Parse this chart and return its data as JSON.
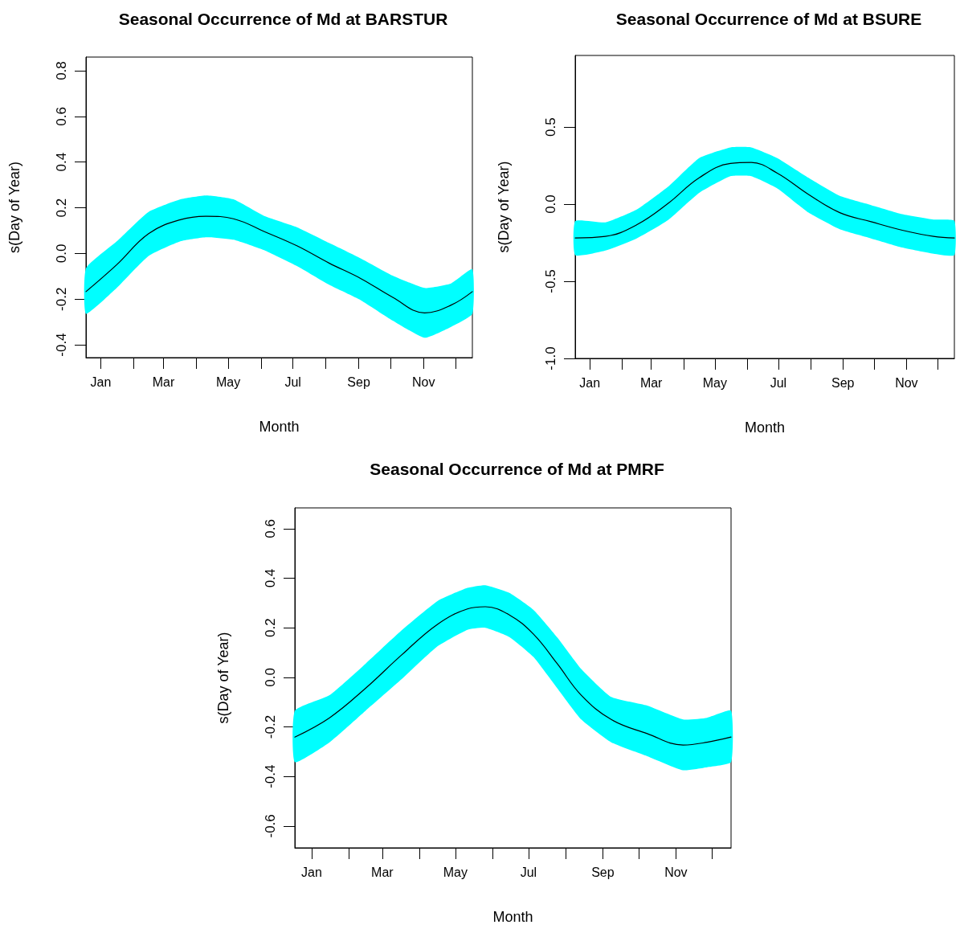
{
  "chart_data": [
    {
      "type": "line",
      "title": "Seasonal Occurrence of Md at BARSTUR",
      "xlabel": "Month",
      "ylabel": "s(Day of Year)",
      "x": [
        "--01-01",
        "--01-30",
        "--03-01",
        "--03-31",
        "--04-25",
        "--05-20",
        "--06-19",
        "--07-19",
        "--08-18",
        "--09-17",
        "--10-17",
        "--11-16",
        "--12-11",
        "--12-31"
      ],
      "series": [
        {
          "color": "#000000",
          "values": [
            -0.167,
            -0.049,
            0.087,
            0.148,
            0.163,
            0.152,
            0.094,
            0.033,
            -0.042,
            -0.11,
            -0.192,
            -0.26,
            -0.226,
            -0.167
          ],
          "upper": [
            -0.065,
            0.053,
            0.182,
            0.237,
            0.254,
            0.237,
            0.162,
            0.114,
            0.046,
            -0.022,
            -0.097,
            -0.151,
            -0.131,
            -0.069
          ],
          "lower": [
            -0.264,
            -0.151,
            -0.011,
            0.053,
            0.071,
            0.06,
            0.012,
            -0.056,
            -0.137,
            -0.205,
            -0.294,
            -0.369,
            -0.321,
            -0.264
          ]
        }
      ],
      "xticks": [
        {
          "value": "--01-15",
          "label": "Jan"
        },
        {
          "value": "--02-15",
          "label": null
        },
        {
          "value": "--03-15",
          "label": "Mar"
        },
        {
          "value": "--04-15",
          "label": null
        },
        {
          "value": "--05-15",
          "label": "May"
        },
        {
          "value": "--06-15",
          "label": null
        },
        {
          "value": "--07-15",
          "label": "Jul"
        },
        {
          "value": "--08-15",
          "label": null
        },
        {
          "value": "--09-15",
          "label": "Sep"
        },
        {
          "value": "--10-15",
          "label": null
        },
        {
          "value": "--11-15",
          "label": "Nov"
        },
        {
          "value": "--12-15",
          "label": null
        }
      ],
      "xlim": [
        "--01-01",
        "--12-31"
      ],
      "ylim": [
        -0.456,
        0.86
      ],
      "yticks": [
        {
          "value": -0.4,
          "label": "-0.4"
        },
        {
          "value": -0.2,
          "label": "-0.2"
        },
        {
          "value": 0,
          "label": "0.0"
        },
        {
          "value": 0.2,
          "label": "0.2"
        },
        {
          "value": 0.4,
          "label": "0.4"
        },
        {
          "value": 0.6,
          "label": "0.6"
        },
        {
          "value": 0.8,
          "label": "0.8"
        }
      ],
      "marker": "none",
      "line_style": "solid",
      "grid": false
    },
    {
      "type": "line",
      "title": "Seasonal Occurrence of Md at BSURE",
      "xlabel": "Month",
      "ylabel": "s(Day of Year)",
      "x": [
        "--01-01",
        "--01-30",
        "--03-01",
        "--03-31",
        "--04-30",
        "--05-30",
        "--06-19",
        "--07-14",
        "--08-13",
        "--09-12",
        "--10-12",
        "--11-11",
        "--12-11",
        "--12-31"
      ],
      "series": [
        {
          "color": "#000000",
          "values": [
            -0.219,
            -0.209,
            -0.134,
            0.004,
            0.171,
            0.264,
            0.27,
            0.201,
            0.063,
            -0.055,
            -0.114,
            -0.169,
            -0.209,
            -0.219
          ],
          "upper": [
            -0.11,
            -0.118,
            -0.035,
            0.112,
            0.299,
            0.368,
            0.368,
            0.299,
            0.171,
            0.053,
            -0.006,
            -0.065,
            -0.1,
            -0.108
          ],
          "lower": [
            -0.331,
            -0.301,
            -0.222,
            -0.104,
            0.073,
            0.181,
            0.181,
            0.102,
            -0.055,
            -0.163,
            -0.222,
            -0.281,
            -0.321,
            -0.331
          ]
        }
      ],
      "xticks": [
        {
          "value": "--01-15",
          "label": "Jan"
        },
        {
          "value": "--02-15",
          "label": null
        },
        {
          "value": "--03-15",
          "label": "Mar"
        },
        {
          "value": "--04-15",
          "label": null
        },
        {
          "value": "--05-15",
          "label": "May"
        },
        {
          "value": "--06-15",
          "label": null
        },
        {
          "value": "--07-15",
          "label": "Jul"
        },
        {
          "value": "--08-15",
          "label": null
        },
        {
          "value": "--09-15",
          "label": "Sep"
        },
        {
          "value": "--10-15",
          "label": null
        },
        {
          "value": "--11-15",
          "label": "Nov"
        },
        {
          "value": "--12-15",
          "label": null
        }
      ],
      "xlim": [
        "--01-01",
        "--12-31"
      ],
      "ylim": [
        -1.0,
        0.964
      ],
      "yticks": [
        {
          "value": -1,
          "label": "-1.0"
        },
        {
          "value": -0.5,
          "label": "-0.5"
        },
        {
          "value": 0,
          "label": "0.0"
        },
        {
          "value": 0.5,
          "label": "0.5"
        }
      ],
      "marker": "none",
      "line_style": "solid",
      "grid": false
    },
    {
      "type": "line",
      "title": "Seasonal Occurrence of Md at PMRF",
      "xlabel": "Month",
      "ylabel": "s(Day of Year)",
      "x": [
        "--01-01",
        "--01-30",
        "--03-01",
        "--03-31",
        "--04-30",
        "--05-25",
        "--06-09",
        "--06-29",
        "--07-19",
        "--08-08",
        "--08-28",
        "--09-22",
        "--10-22",
        "--11-21",
        "--12-11",
        "--12-31"
      ],
      "series": [
        {
          "color": "#000000",
          "values": [
            -0.241,
            -0.163,
            -0.044,
            0.09,
            0.214,
            0.276,
            0.285,
            0.252,
            0.175,
            0.055,
            -0.072,
            -0.17,
            -0.227,
            -0.273,
            -0.262,
            -0.241
          ],
          "upper": [
            -0.135,
            -0.072,
            0.055,
            0.189,
            0.308,
            0.361,
            0.372,
            0.341,
            0.273,
            0.161,
            0.034,
            -0.079,
            -0.114,
            -0.17,
            -0.163,
            -0.135
          ],
          "lower": [
            -0.342,
            -0.262,
            -0.135,
            -0.008,
            0.125,
            0.192,
            0.2,
            0.163,
            0.083,
            -0.044,
            -0.17,
            -0.262,
            -0.318,
            -0.375,
            -0.363,
            -0.342
          ]
        }
      ],
      "xticks": [
        {
          "value": "--01-15",
          "label": "Jan"
        },
        {
          "value": "--02-15",
          "label": null
        },
        {
          "value": "--03-15",
          "label": "Mar"
        },
        {
          "value": "--04-15",
          "label": null
        },
        {
          "value": "--05-15",
          "label": "May"
        },
        {
          "value": "--06-15",
          "label": null
        },
        {
          "value": "--07-15",
          "label": "Jul"
        },
        {
          "value": "--08-15",
          "label": null
        },
        {
          "value": "--09-15",
          "label": "Sep"
        },
        {
          "value": "--10-15",
          "label": null
        },
        {
          "value": "--11-15",
          "label": "Nov"
        },
        {
          "value": "--12-15",
          "label": null
        }
      ],
      "xlim": [
        "--01-01",
        "--12-31"
      ],
      "ylim": [
        -0.688,
        0.684
      ],
      "yticks": [
        {
          "value": -0.6,
          "label": "-0.6"
        },
        {
          "value": -0.4,
          "label": "-0.4"
        },
        {
          "value": -0.2,
          "label": "-0.2"
        },
        {
          "value": 0,
          "label": "0.0"
        },
        {
          "value": 0.2,
          "label": "0.2"
        },
        {
          "value": 0.4,
          "label": "0.4"
        },
        {
          "value": 0.6,
          "label": "0.6"
        }
      ],
      "marker": "none",
      "line_style": "solid",
      "grid": false
    }
  ]
}
